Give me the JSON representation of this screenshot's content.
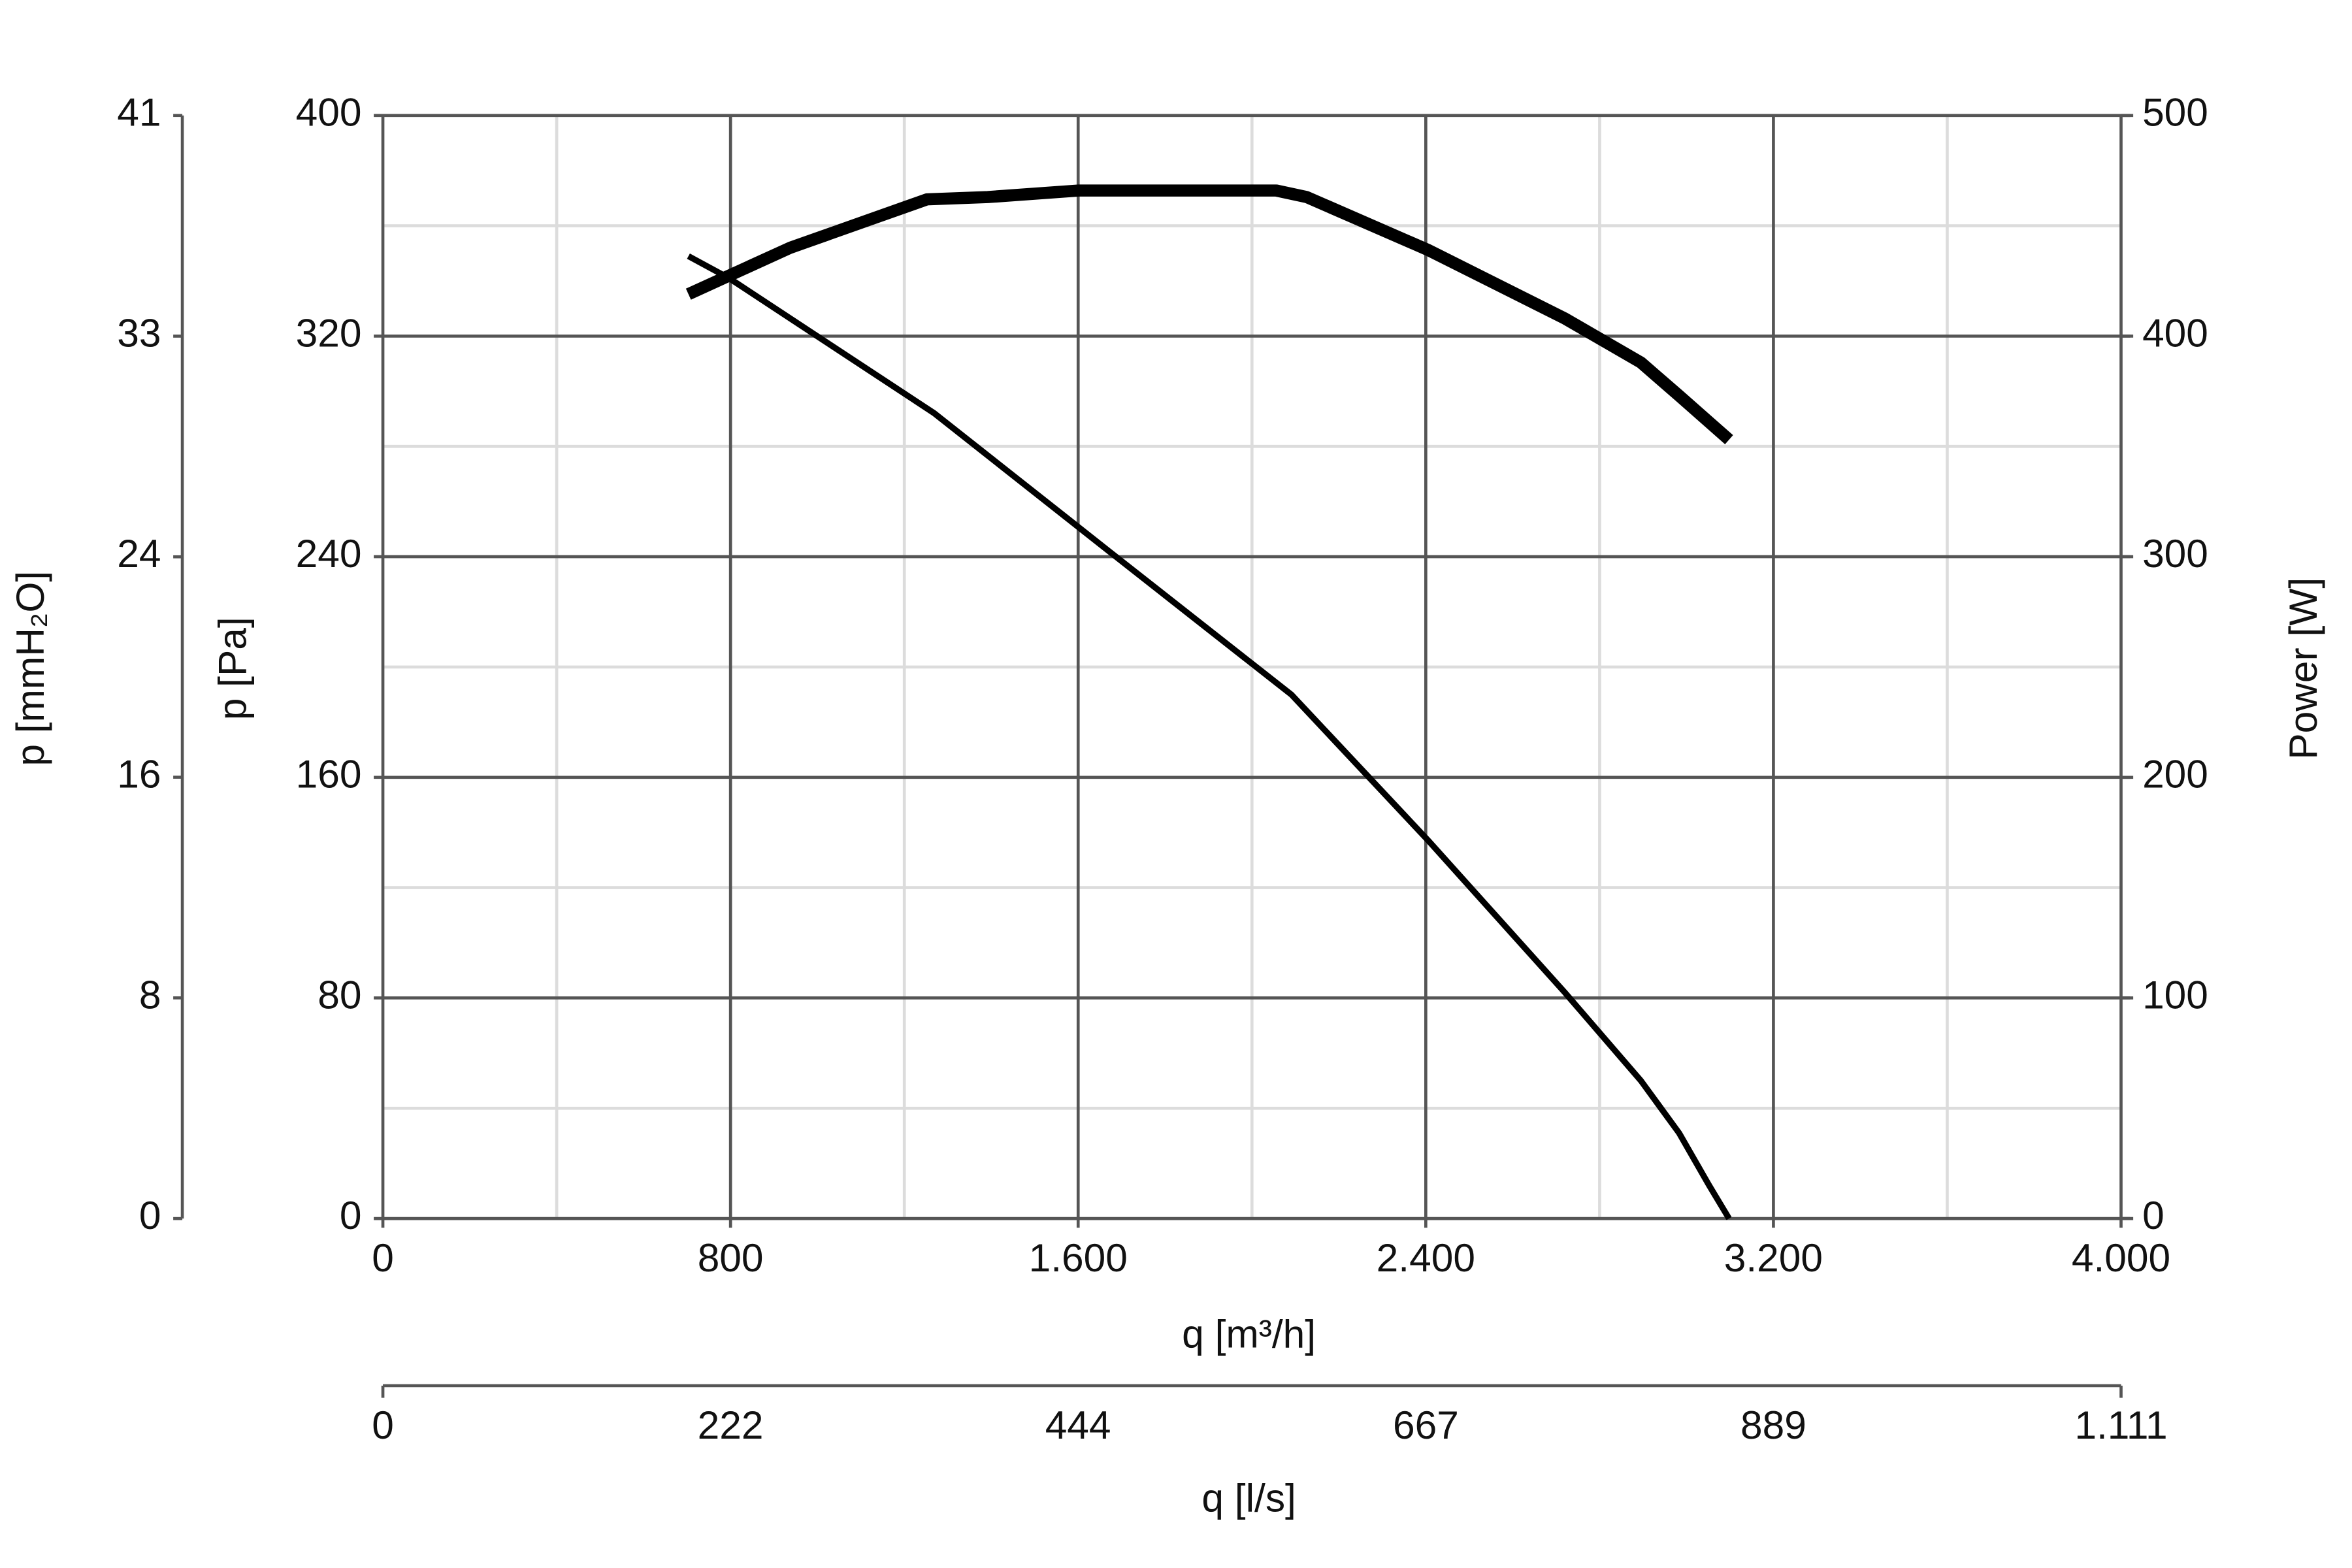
{
  "chart_data": {
    "type": "line",
    "x_label": "q [m³/h]",
    "y_label": "p [Pa]",
    "y2_label": "Power [W]",
    "y3_label": "p [mmH₂O]",
    "x2_label": "q [l/s]",
    "grid": true,
    "xlim": [
      0,
      4000
    ],
    "xticks": [
      0,
      800,
      {
        "value": 1600,
        "label": "1.600"
      },
      {
        "value": 2400,
        "label": "2.400"
      },
      {
        "value": 3200,
        "label": "3.200"
      },
      {
        "value": 4000,
        "label": "4.000"
      }
    ],
    "ylim": [
      0,
      400
    ],
    "yticks": [
      0,
      80,
      160,
      240,
      320,
      400
    ],
    "y2lim": [
      0,
      500
    ],
    "y2ticks": [
      0,
      100,
      200,
      300,
      400,
      500
    ],
    "y3lim": [
      0,
      40.79
    ],
    "y3ticks": [
      0,
      {
        "value": 8.16,
        "label": "8"
      },
      {
        "value": 16.32,
        "label": "16"
      },
      {
        "value": 24.47,
        "label": "24"
      },
      {
        "value": 32.63,
        "label": "33"
      },
      {
        "value": 40.79,
        "label": "41"
      }
    ],
    "x2lim": [
      0,
      1111.1
    ],
    "x2ticks": [
      0,
      {
        "value": 222.2,
        "label": "222"
      },
      {
        "value": 444.4,
        "label": "444"
      },
      {
        "value": 666.7,
        "label": "667"
      },
      {
        "value": 888.9,
        "label": "889"
      },
      {
        "value": 1111.1,
        "label": "1.111"
      }
    ],
    "series": [
      {
        "color": "#000000",
        "x": [
          703,
          797,
          1269,
          1671,
          2091,
          2406,
          2720,
          2895,
          2983,
          3052,
          3098
        ],
        "values": [
          349,
          341,
          292,
          242,
          190,
          137,
          82,
          50,
          31,
          12,
          0
        ]
      },
      {
        "color": "#000000",
        "axis": "y2",
        "x": [
          703,
          937,
          1252,
          1392,
          1601,
          1846,
          2056,
          2126,
          2406,
          2720,
          2895,
          2983,
          3098
        ],
        "values": [
          419,
          440,
          462,
          463,
          466,
          466,
          466,
          463,
          439,
          408,
          388,
          373,
          353
        ]
      }
    ]
  }
}
